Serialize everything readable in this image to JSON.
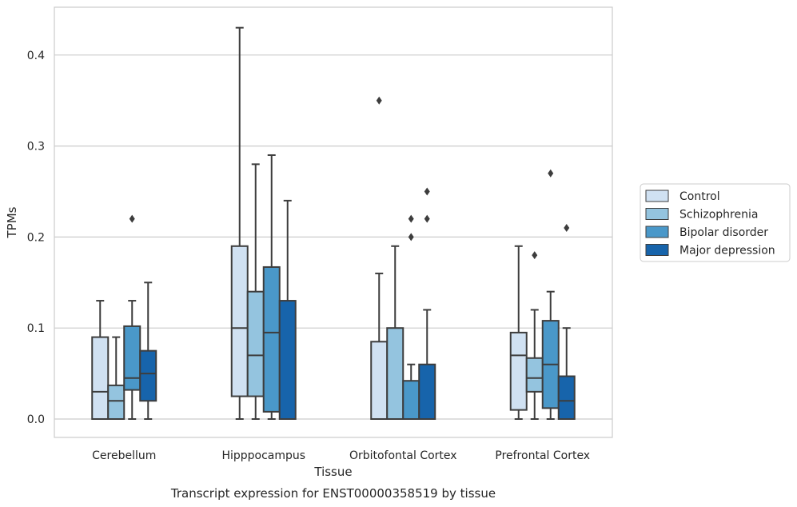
{
  "chart_data": {
    "type": "boxplot",
    "title": "",
    "caption": "Transcript expression for ENST00000358519 by tissue",
    "xlabel": "Tissue",
    "ylabel": "TPMs",
    "ylim": [
      -0.021,
      0.455
    ],
    "yticks": [
      0.0,
      0.1,
      0.2,
      0.3,
      0.4
    ],
    "ytick_labels": [
      "0.0",
      "0.1",
      "0.2",
      "0.3",
      "0.4"
    ],
    "grid": "horizontal",
    "legend_placement": "right",
    "categories": [
      "Cerebellum",
      "Hipppocampus",
      "Orbitofontal Cortex",
      "Prefrontal Cortex"
    ],
    "series": [
      {
        "name": "Control",
        "color": "#d0e1f2",
        "boxes": [
          {
            "whislo": 0.0,
            "q1": 0.0,
            "med": 0.03,
            "q3": 0.09,
            "whishi": 0.13,
            "fliers": []
          },
          {
            "whislo": 0.0,
            "q1": 0.025,
            "med": 0.1,
            "q3": 0.19,
            "whishi": 0.43,
            "fliers": []
          },
          {
            "whislo": 0.0,
            "q1": 0.0,
            "med": 0.0,
            "q3": 0.085,
            "whishi": 0.16,
            "fliers": [
              0.35
            ]
          },
          {
            "whislo": 0.0,
            "q1": 0.01,
            "med": 0.07,
            "q3": 0.095,
            "whishi": 0.19,
            "fliers": []
          }
        ]
      },
      {
        "name": "Schizophrenia",
        "color": "#94c4df",
        "boxes": [
          {
            "whislo": 0.0,
            "q1": 0.0,
            "med": 0.02,
            "q3": 0.037,
            "whishi": 0.09,
            "fliers": []
          },
          {
            "whislo": 0.0,
            "q1": 0.025,
            "med": 0.07,
            "q3": 0.14,
            "whishi": 0.28,
            "fliers": []
          },
          {
            "whislo": 0.0,
            "q1": 0.0,
            "med": 0.0,
            "q3": 0.1,
            "whishi": 0.19,
            "fliers": []
          },
          {
            "whislo": 0.0,
            "q1": 0.03,
            "med": 0.045,
            "q3": 0.067,
            "whishi": 0.12,
            "fliers": [
              0.18
            ]
          }
        ]
      },
      {
        "name": "Bipolar disorder",
        "color": "#4a98c9",
        "boxes": [
          {
            "whislo": 0.0,
            "q1": 0.032,
            "med": 0.045,
            "q3": 0.102,
            "whishi": 0.13,
            "fliers": [
              0.22
            ]
          },
          {
            "whislo": 0.0,
            "q1": 0.008,
            "med": 0.095,
            "q3": 0.167,
            "whishi": 0.29,
            "fliers": []
          },
          {
            "whislo": 0.0,
            "q1": 0.0,
            "med": 0.0,
            "q3": 0.042,
            "whishi": 0.06,
            "fliers": [
              0.2,
              0.22
            ]
          },
          {
            "whislo": 0.0,
            "q1": 0.012,
            "med": 0.06,
            "q3": 0.108,
            "whishi": 0.14,
            "fliers": [
              0.27
            ]
          }
        ]
      },
      {
        "name": "Major depression",
        "color": "#1764ab",
        "boxes": [
          {
            "whislo": 0.0,
            "q1": 0.02,
            "med": 0.05,
            "q3": 0.075,
            "whishi": 0.15,
            "fliers": []
          },
          {
            "whislo": 0.0,
            "q1": 0.0,
            "med": 0.0,
            "q3": 0.13,
            "whishi": 0.24,
            "fliers": []
          },
          {
            "whislo": 0.0,
            "q1": 0.0,
            "med": 0.0,
            "q3": 0.06,
            "whishi": 0.12,
            "fliers": [
              0.22,
              0.25
            ]
          },
          {
            "whislo": 0.0,
            "q1": 0.0,
            "med": 0.02,
            "q3": 0.047,
            "whishi": 0.1,
            "fliers": [
              0.21
            ]
          }
        ]
      }
    ]
  }
}
